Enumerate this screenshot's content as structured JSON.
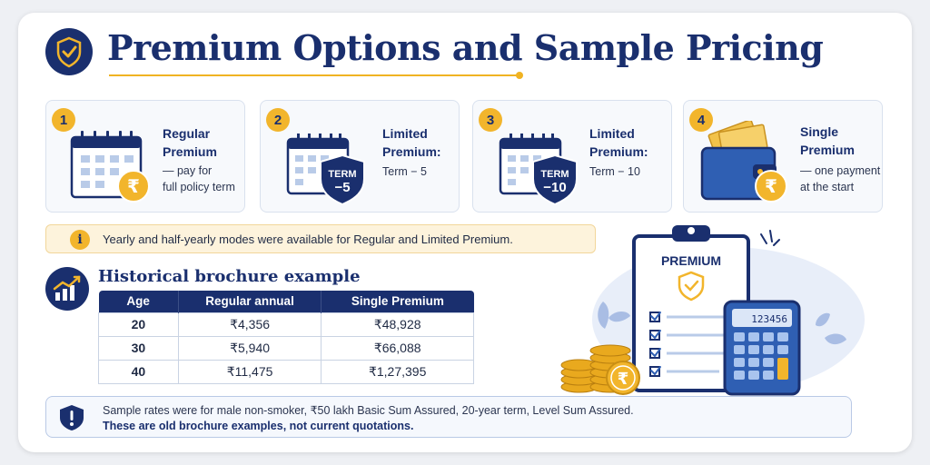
{
  "title": "Premium Options and Sample Pricing",
  "options": [
    {
      "num": "1",
      "title_line1": "Regular",
      "title_line2": "Premium",
      "sub_line1": "— pay for",
      "sub_line2": "full policy term",
      "icon": "calendar-rupee-icon"
    },
    {
      "num": "2",
      "title_line1": "Limited",
      "title_line2": "Premium:",
      "sub_line1": "Term − 5",
      "badge_line1": "TERM",
      "badge_line2": "−5",
      "icon": "calendar-shield-icon"
    },
    {
      "num": "3",
      "title_line1": "Limited",
      "title_line2": "Premium:",
      "sub_line1": "Term − 10",
      "badge_line1": "TERM",
      "badge_line2": "−10",
      "icon": "calendar-shield-icon"
    },
    {
      "num": "4",
      "title_line1": "Single",
      "title_line2": "Premium",
      "sub_line1": "— one payment",
      "sub_line2": "at the start",
      "icon": "wallet-rupee-icon"
    }
  ],
  "info": {
    "icon_glyph": "i",
    "text": "Yearly and half-yearly modes were available for Regular and Limited Premium."
  },
  "historical": {
    "title": "Historical brochure example",
    "columns": [
      "Age",
      "Regular annual",
      "Single Premium"
    ],
    "rows": [
      [
        "20",
        "₹4,356",
        "₹48,928"
      ],
      [
        "30",
        "₹5,940",
        "₹66,088"
      ],
      [
        "40",
        "₹11,475",
        "₹1,27,395"
      ]
    ]
  },
  "note": {
    "line1": "Sample rates were for male non-smoker, ₹50 lakh Basic Sum Assured, 20-year term, Level Sum Assured.",
    "line2": "These are old brochure examples, not current quotations."
  },
  "illustration": {
    "clipboard_label": "PREMIUM",
    "calculator_display": "123456",
    "coin_glyph": "₹"
  },
  "colors": {
    "navy": "#1a2f6e",
    "gold": "#f2b52c",
    "blue": "#2f5fb3"
  }
}
